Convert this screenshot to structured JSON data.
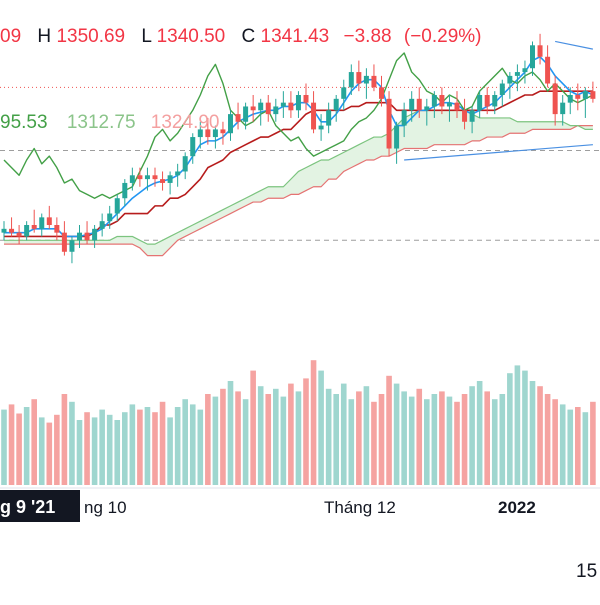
{
  "legend": {
    "ohlc": {
      "open_tail": "09",
      "h_label": "H",
      "high": "1350.69",
      "l_label": "L",
      "low": "1340.50",
      "c_label": "C",
      "close": "1341.43",
      "change": "−3.88",
      "change_pct": "(−0.29%)"
    },
    "ichimoku_values": [
      "95.53",
      "1312.75",
      "1324.90"
    ]
  },
  "time_axis": {
    "crosshair_label": "g 9 '21",
    "labels": [
      "ng 10",
      "Tháng 12",
      "2022"
    ]
  },
  "date_footer": "15",
  "colors": {
    "up": "#26a69a",
    "down": "#ef5350",
    "conversion_line": "#2196f3",
    "base_line": "#b71c1c",
    "lagging_span": "#43a047",
    "leading_span_a": "#7cc47f",
    "leading_span_b": "#e57373",
    "cloud_fill": "#e3f3e3",
    "volume_up": "#9fd6cf",
    "volume_down": "#f5a3a1",
    "trendline": "#4a90e2",
    "legend_red": "#f23645",
    "legend_green": "#8bc48a",
    "legend_pink": "#f4a0a0"
  },
  "chart_data": {
    "type": "candlestick",
    "title": "",
    "xlabel": "",
    "ylabel": "",
    "ylim": [
      1232,
      1368
    ],
    "visible_axis_tick_labels": [
      "ng 10",
      "Tháng 12",
      "2022"
    ],
    "candles": [
      [
        1262,
        1268,
        1258,
        1264
      ],
      [
        1264,
        1270,
        1260,
        1262
      ],
      [
        1262,
        1266,
        1256,
        1260
      ],
      [
        1260,
        1268,
        1258,
        1266
      ],
      [
        1266,
        1274,
        1262,
        1264
      ],
      [
        1264,
        1272,
        1260,
        1270
      ],
      [
        1270,
        1276,
        1264,
        1266
      ],
      [
        1266,
        1270,
        1258,
        1262
      ],
      [
        1262,
        1268,
        1250,
        1252
      ],
      [
        1252,
        1260,
        1246,
        1258
      ],
      [
        1258,
        1266,
        1254,
        1262
      ],
      [
        1262,
        1268,
        1256,
        1258
      ],
      [
        1258,
        1266,
        1254,
        1264
      ],
      [
        1264,
        1272,
        1260,
        1268
      ],
      [
        1268,
        1276,
        1264,
        1272
      ],
      [
        1272,
        1282,
        1268,
        1280
      ],
      [
        1280,
        1290,
        1276,
        1288
      ],
      [
        1288,
        1296,
        1284,
        1292
      ],
      [
        1292,
        1296,
        1286,
        1290
      ],
      [
        1290,
        1296,
        1284,
        1292
      ],
      [
        1292,
        1296,
        1286,
        1290
      ],
      [
        1290,
        1294,
        1284,
        1288
      ],
      [
        1288,
        1294,
        1282,
        1292
      ],
      [
        1292,
        1298,
        1286,
        1294
      ],
      [
        1294,
        1304,
        1290,
        1302
      ],
      [
        1302,
        1314,
        1298,
        1312
      ],
      [
        1312,
        1320,
        1306,
        1316
      ],
      [
        1316,
        1322,
        1308,
        1312
      ],
      [
        1312,
        1318,
        1306,
        1316
      ],
      [
        1316,
        1320,
        1308,
        1314
      ],
      [
        1314,
        1326,
        1310,
        1324
      ],
      [
        1324,
        1330,
        1316,
        1320
      ],
      [
        1320,
        1330,
        1316,
        1328
      ],
      [
        1328,
        1334,
        1320,
        1326
      ],
      [
        1326,
        1332,
        1318,
        1330
      ],
      [
        1330,
        1334,
        1320,
        1324
      ],
      [
        1324,
        1332,
        1320,
        1328
      ],
      [
        1328,
        1336,
        1322,
        1330
      ],
      [
        1330,
        1336,
        1322,
        1326
      ],
      [
        1326,
        1336,
        1322,
        1334
      ],
      [
        1334,
        1340,
        1326,
        1330
      ],
      [
        1330,
        1336,
        1314,
        1316
      ],
      [
        1316,
        1324,
        1310,
        1318
      ],
      [
        1318,
        1330,
        1314,
        1326
      ],
      [
        1326,
        1334,
        1320,
        1332
      ],
      [
        1332,
        1342,
        1326,
        1338
      ],
      [
        1338,
        1350,
        1334,
        1346
      ],
      [
        1346,
        1352,
        1336,
        1340
      ],
      [
        1340,
        1348,
        1332,
        1344
      ],
      [
        1344,
        1350,
        1336,
        1338
      ],
      [
        1338,
        1344,
        1328,
        1332
      ],
      [
        1332,
        1336,
        1302,
        1306
      ],
      [
        1306,
        1320,
        1298,
        1318
      ],
      [
        1318,
        1330,
        1312,
        1326
      ],
      [
        1326,
        1336,
        1320,
        1332
      ],
      [
        1332,
        1338,
        1322,
        1326
      ],
      [
        1326,
        1332,
        1318,
        1328
      ],
      [
        1328,
        1336,
        1322,
        1334
      ],
      [
        1334,
        1338,
        1324,
        1328
      ],
      [
        1328,
        1334,
        1320,
        1330
      ],
      [
        1330,
        1336,
        1322,
        1326
      ],
      [
        1326,
        1332,
        1316,
        1320
      ],
      [
        1320,
        1328,
        1314,
        1326
      ],
      [
        1326,
        1336,
        1322,
        1334
      ],
      [
        1334,
        1338,
        1324,
        1328
      ],
      [
        1328,
        1336,
        1324,
        1334
      ],
      [
        1334,
        1342,
        1328,
        1340
      ],
      [
        1340,
        1346,
        1332,
        1344
      ],
      [
        1344,
        1350,
        1336,
        1346
      ],
      [
        1346,
        1352,
        1340,
        1348
      ],
      [
        1348,
        1362,
        1344,
        1360
      ],
      [
        1360,
        1366,
        1350,
        1354
      ],
      [
        1354,
        1360,
        1338,
        1340
      ],
      [
        1340,
        1344,
        1318,
        1324
      ],
      [
        1324,
        1334,
        1318,
        1330
      ],
      [
        1330,
        1338,
        1324,
        1334
      ],
      [
        1334,
        1340,
        1326,
        1332
      ],
      [
        1332,
        1338,
        1322,
        1336
      ],
      [
        1336,
        1341,
        1330,
        1332
      ]
    ],
    "volume": [
      58,
      62,
      55,
      60,
      66,
      52,
      48,
      54,
      70,
      64,
      50,
      56,
      52,
      58,
      54,
      50,
      56,
      62,
      58,
      60,
      56,
      64,
      52,
      60,
      66,
      62,
      58,
      70,
      68,
      74,
      80,
      72,
      66,
      88,
      76,
      70,
      74,
      68,
      78,
      72,
      82,
      96,
      88,
      74,
      70,
      78,
      66,
      72,
      76,
      64,
      70,
      84,
      78,
      72,
      68,
      74,
      66,
      70,
      72,
      68,
      64,
      70,
      76,
      80,
      72,
      66,
      70,
      86,
      92,
      88,
      80,
      76,
      70,
      66,
      62,
      58,
      60,
      56,
      64
    ],
    "conversion_line": [
      1262,
      1262,
      1262,
      1262,
      1264,
      1264,
      1264,
      1264,
      1260,
      1260,
      1260,
      1261,
      1262,
      1264,
      1268,
      1272,
      1276,
      1280,
      1283,
      1286,
      1288,
      1289,
      1290,
      1292,
      1296,
      1302,
      1308,
      1310,
      1310,
      1312,
      1316,
      1320,
      1322,
      1324,
      1325,
      1326,
      1326,
      1328,
      1328,
      1330,
      1330,
      1326,
      1320,
      1320,
      1324,
      1330,
      1336,
      1340,
      1342,
      1342,
      1338,
      1326,
      1318,
      1318,
      1322,
      1326,
      1326,
      1328,
      1330,
      1330,
      1329,
      1326,
      1324,
      1326,
      1328,
      1330,
      1334,
      1338,
      1342,
      1346,
      1352,
      1354,
      1350,
      1344,
      1340,
      1336,
      1334,
      1336,
      1334
    ],
    "base_line": [
      1260,
      1260,
      1260,
      1260,
      1260,
      1260,
      1260,
      1260,
      1260,
      1260,
      1260,
      1260,
      1262,
      1266,
      1266,
      1268,
      1272,
      1272,
      1272,
      1272,
      1276,
      1276,
      1280,
      1280,
      1282,
      1286,
      1290,
      1296,
      1298,
      1300,
      1304,
      1306,
      1308,
      1310,
      1312,
      1312,
      1314,
      1316,
      1316,
      1320,
      1324,
      1326,
      1326,
      1326,
      1326,
      1326,
      1328,
      1328,
      1330,
      1330,
      1330,
      1330,
      1326,
      1326,
      1326,
      1326,
      1326,
      1326,
      1326,
      1326,
      1326,
      1326,
      1326,
      1326,
      1326,
      1326,
      1328,
      1330,
      1332,
      1334,
      1334,
      1336,
      1336,
      1336,
      1336,
      1336,
      1336,
      1336,
      1336
    ],
    "lagging_span": [
      1300,
      1296,
      1292,
      1300,
      1306,
      1298,
      1302,
      1296,
      1288,
      1290,
      1284,
      1282,
      1280,
      1282,
      1280,
      1282,
      1284,
      1286,
      1294,
      1302,
      1312,
      1316,
      1310,
      1314,
      1320,
      1326,
      1334,
      1344,
      1350,
      1340,
      1326,
      1322,
      1318,
      1320,
      1324,
      1326,
      1318,
      1314,
      1310,
      1312,
      1306,
      1302,
      1304,
      1306,
      1308,
      1310,
      1316,
      1320,
      1322,
      1326,
      1332,
      1342,
      1352,
      1356,
      1346,
      1342,
      1336,
      1334,
      1330,
      1334,
      1332,
      1326,
      1328,
      1336,
      1340,
      1344,
      1348,
      1342,
      1340,
      1344,
      1346,
      1342,
      1336,
      1340,
      1336,
      1332,
      1330,
      1332,
      1334
    ],
    "leading_span_a": [
      1258,
      1258,
      1258,
      1258,
      1258,
      1258,
      1258,
      1258,
      1258,
      1258,
      1258,
      1258,
      1258,
      1258,
      1258,
      1260,
      1260,
      1260,
      1258,
      1256,
      1256,
      1258,
      1260,
      1262,
      1264,
      1266,
      1268,
      1270,
      1272,
      1274,
      1276,
      1278,
      1280,
      1282,
      1284,
      1286,
      1286,
      1286,
      1290,
      1294,
      1296,
      1298,
      1300,
      1300,
      1302,
      1304,
      1306,
      1308,
      1310,
      1312,
      1312,
      1314,
      1318,
      1322,
      1324,
      1326,
      1326,
      1326,
      1326,
      1326,
      1326,
      1326,
      1324,
      1322,
      1322,
      1322,
      1322,
      1322,
      1320,
      1320,
      1320,
      1320,
      1320,
      1320,
      1320,
      1318,
      1318,
      1316,
      1316
    ],
    "leading_span_b": [
      1256,
      1256,
      1256,
      1256,
      1256,
      1256,
      1256,
      1256,
      1256,
      1256,
      1256,
      1256,
      1256,
      1256,
      1256,
      1256,
      1256,
      1256,
      1254,
      1250,
      1250,
      1250,
      1254,
      1258,
      1260,
      1262,
      1264,
      1266,
      1268,
      1270,
      1272,
      1274,
      1276,
      1278,
      1278,
      1280,
      1280,
      1280,
      1282,
      1282,
      1284,
      1286,
      1286,
      1290,
      1290,
      1294,
      1296,
      1298,
      1300,
      1300,
      1302,
      1302,
      1304,
      1306,
      1306,
      1306,
      1306,
      1308,
      1308,
      1308,
      1308,
      1308,
      1310,
      1310,
      1312,
      1312,
      1312,
      1314,
      1314,
      1314,
      1316,
      1316,
      1316,
      1316,
      1316,
      1316,
      1318,
      1318,
      1318
    ],
    "reference_lines": [
      {
        "name": "last price",
        "value": 1338,
        "style": "dotted",
        "color": "#ef5350"
      },
      {
        "name": "dashed level",
        "value": 1305,
        "style": "dashed",
        "color": "#9e9e9e"
      },
      {
        "name": "dashed level",
        "value": 1258,
        "style": "dashed",
        "color": "#9e9e9e"
      }
    ],
    "trendlines": [
      {
        "from": [
          53,
          1300
        ],
        "to": [
          78,
          1308
        ]
      },
      {
        "from": [
          73,
          1362
        ],
        "to": [
          78,
          1358
        ]
      }
    ]
  }
}
